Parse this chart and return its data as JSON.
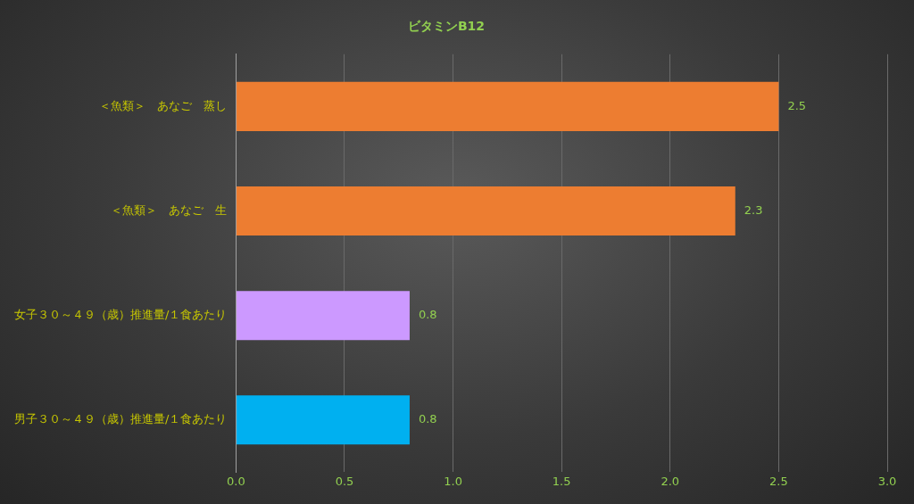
{
  "chart_data": {
    "type": "bar",
    "orientation": "horizontal",
    "title": "ビタミンB12",
    "categories": [
      "＜魚類＞　あなご　蒸し",
      "＜魚類＞　あなご　生",
      "女子３０～４９（歳）推進量/１食あたり",
      "男子３０～４９（歳）推進量/１食あたり"
    ],
    "values": [
      2.5,
      2.3,
      0.8,
      0.8
    ],
    "colors": [
      "#ed7d31",
      "#ed7d31",
      "#cc99ff",
      "#00b0f0"
    ],
    "xlim": [
      0,
      3
    ],
    "xticks": [
      {
        "value": 0,
        "label": "0.0"
      },
      0.5,
      {
        "value": 1,
        "label": "1.0"
      },
      1.5,
      {
        "value": 2,
        "label": "2.0"
      },
      2.5,
      {
        "value": 3,
        "label": "3.0"
      }
    ],
    "value_labels": [
      "2.5",
      "2.3",
      "0.8",
      "0.8"
    ],
    "grid": "x",
    "legend": false
  }
}
